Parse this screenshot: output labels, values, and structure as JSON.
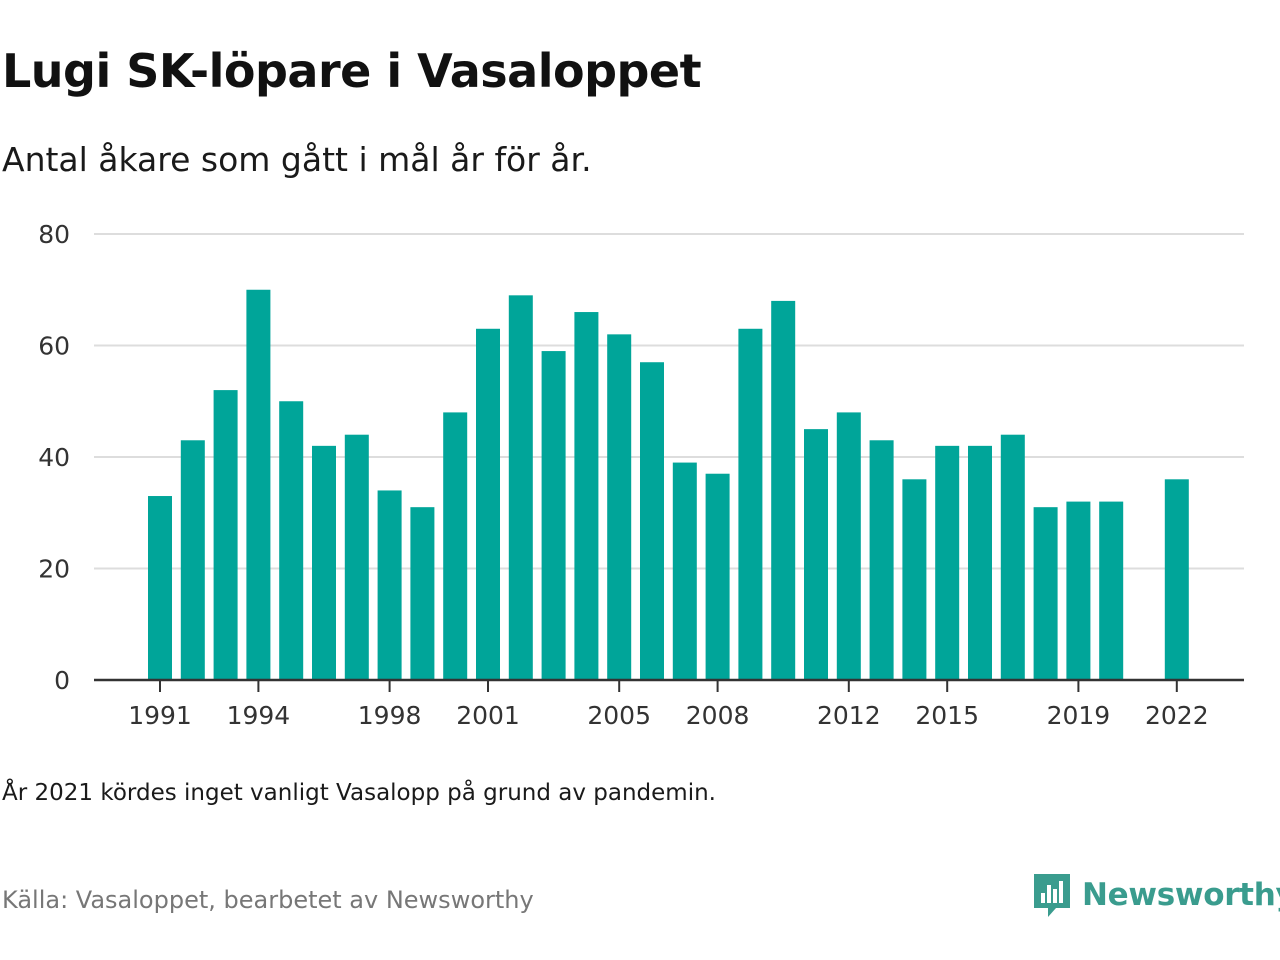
{
  "chart_data": {
    "type": "bar",
    "title": "Lugi SK-löpare i Vasaloppet",
    "subtitle": "Antal åkare som gått i mål år för år.",
    "categories": [
      "1991",
      "1992",
      "1993",
      "1994",
      "1995",
      "1996",
      "1997",
      "1998",
      "1999",
      "2000",
      "2001",
      "2002",
      "2003",
      "2004",
      "2005",
      "2006",
      "2007",
      "2008",
      "2009",
      "2010",
      "2011",
      "2012",
      "2013",
      "2014",
      "2015",
      "2016",
      "2017",
      "2018",
      "2019",
      "2020",
      "2021",
      "2022"
    ],
    "values": [
      33,
      43,
      52,
      70,
      50,
      42,
      44,
      34,
      31,
      48,
      63,
      69,
      59,
      66,
      62,
      57,
      39,
      37,
      63,
      68,
      45,
      48,
      43,
      36,
      42,
      42,
      44,
      31,
      32,
      32,
      null,
      36
    ],
    "x_tick_labels": [
      "1991",
      "1994",
      "1998",
      "2001",
      "2005",
      "2008",
      "2012",
      "2015",
      "2019",
      "2022"
    ],
    "y_ticks": [
      "0",
      "20",
      "40",
      "60",
      "80"
    ],
    "ylim": [
      0,
      80
    ],
    "xlabel": "",
    "ylabel": "",
    "grid": true,
    "bar_color": "#00a599"
  },
  "note": "År 2021 kördes inget vanligt Vasalopp på grund av pandemin.",
  "source": "Källa: Vasaloppet, bearbetet av Newsworthy",
  "brand": {
    "name": "Newsworthy",
    "icon": "newsworthy-logo-icon",
    "color": "#3a9c8e"
  }
}
